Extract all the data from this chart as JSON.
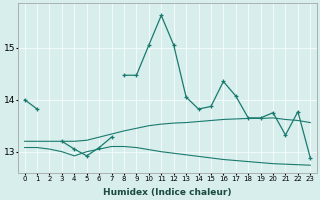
{
  "xlabel": "Humidex (Indice chaleur)",
  "bg_color": "#d7eeed",
  "line_color": "#1a7a6e",
  "x": [
    0,
    1,
    2,
    3,
    4,
    5,
    6,
    7,
    8,
    9,
    10,
    11,
    12,
    13,
    14,
    15,
    16,
    17,
    18,
    19,
    20,
    21,
    22,
    23
  ],
  "y_main": [
    14.0,
    13.82,
    null,
    null,
    null,
    null,
    null,
    null,
    14.47,
    14.47,
    15.05,
    15.62,
    15.05,
    14.05,
    13.82,
    13.87,
    14.35,
    14.07,
    13.65,
    13.65,
    13.75,
    13.32,
    13.77,
    12.88
  ],
  "y_upper": [
    13.2,
    13.2,
    13.2,
    13.2,
    13.2,
    13.22,
    13.28,
    13.34,
    13.4,
    13.45,
    13.5,
    13.53,
    13.55,
    13.56,
    13.58,
    13.6,
    13.62,
    13.63,
    13.64,
    13.64,
    13.65,
    13.62,
    13.6,
    13.56
  ],
  "y_lower": [
    13.08,
    13.08,
    13.05,
    13.0,
    12.92,
    13.0,
    13.05,
    13.1,
    13.1,
    13.08,
    13.04,
    13.0,
    12.97,
    12.94,
    12.91,
    12.88,
    12.85,
    12.83,
    12.81,
    12.79,
    12.77,
    12.76,
    12.75,
    12.74
  ],
  "y_dip": [
    null,
    null,
    null,
    13.2,
    13.05,
    12.92,
    13.08,
    13.28,
    null,
    null,
    null,
    null,
    null,
    null,
    null,
    null,
    null,
    null,
    null,
    null,
    null,
    null,
    null,
    null
  ],
  "ylim": [
    12.6,
    15.85
  ],
  "yticks": [
    13,
    14,
    15
  ],
  "xticks": [
    0,
    1,
    2,
    3,
    4,
    5,
    6,
    7,
    8,
    9,
    10,
    11,
    12,
    13,
    14,
    15,
    16,
    17,
    18,
    19,
    20,
    21,
    22,
    23
  ]
}
